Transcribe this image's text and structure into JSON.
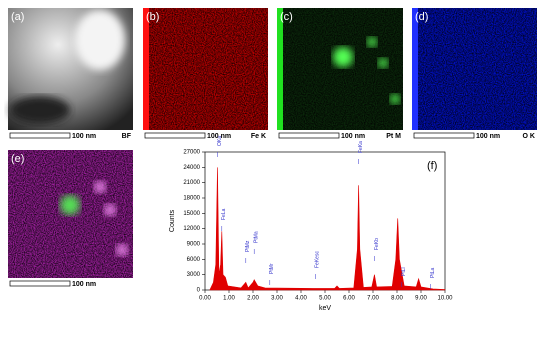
{
  "panels": [
    {
      "label": "(a)",
      "scale": "100 nm",
      "signal": "BF"
    },
    {
      "label": "(b)",
      "scale": "100 nm",
      "signal": "Fe K"
    },
    {
      "label": "(c)",
      "scale": "100 nm",
      "signal": "Pt M"
    },
    {
      "label": "(d)",
      "scale": "100 nm",
      "signal": "O K"
    },
    {
      "label": "(e)",
      "scale": "100 nm"
    }
  ],
  "chart_data": {
    "type": "area",
    "label": "(f)",
    "x_label": "keV",
    "y_label": "Counts",
    "color": "#e00000",
    "x": [
      0.2,
      0.35,
      0.45,
      0.52,
      0.58,
      0.65,
      0.7,
      0.75,
      0.85,
      0.95,
      1.5,
      1.7,
      1.8,
      2.0,
      2.05,
      2.2,
      2.5,
      4.5,
      5.4,
      5.5,
      5.6,
      6.2,
      6.35,
      6.4,
      6.45,
      6.6,
      6.95,
      7.06,
      7.15,
      7.8,
      7.95,
      8.03,
      8.1,
      8.3,
      8.8,
      8.9,
      9.0,
      9.5,
      10
    ],
    "values": [
      0,
      1500,
      5000,
      24000,
      3000,
      5000,
      11500,
      3000,
      2500,
      800,
      400,
      1500,
      400,
      1500,
      2000,
      800,
      400,
      300,
      300,
      800,
      300,
      400,
      8000,
      20500,
      8000,
      500,
      600,
      3000,
      600,
      700,
      6000,
      14000,
      6000,
      800,
      600,
      2200,
      600,
      200,
      100
    ],
    "xlim": [
      0,
      10
    ],
    "ylim": [
      0,
      27000
    ],
    "xticks": [
      {
        "value": 0,
        "label": "0.00"
      },
      {
        "value": 1,
        "label": "1.00"
      },
      {
        "value": 2,
        "label": "2.00"
      },
      {
        "value": 3,
        "label": "3.00"
      },
      {
        "value": 4,
        "label": "4.00"
      },
      {
        "value": 5,
        "label": "5.00"
      },
      {
        "value": 6,
        "label": "6.00"
      },
      {
        "value": 7,
        "label": "7.00"
      },
      {
        "value": 8,
        "label": "8.00"
      },
      {
        "value": 9,
        "label": "9.00"
      },
      {
        "value": 10,
        "label": "10.00"
      }
    ],
    "yticks": [
      0,
      3000,
      6000,
      9000,
      12000,
      15000,
      18000,
      21000,
      24000,
      27000
    ],
    "annotations": [
      {
        "label": "OKa",
        "x": 0.52
      },
      {
        "label": "FeLa",
        "x": 0.7
      },
      {
        "label": "PtMz",
        "x": 1.7
      },
      {
        "label": "PtMa",
        "x": 2.05
      },
      {
        "label": "PtMr",
        "x": 2.7
      },
      {
        "label": "FeKesc",
        "x": 4.6
      },
      {
        "label": "FeKa",
        "x": 6.4
      },
      {
        "label": "FeKb",
        "x": 7.06
      },
      {
        "label": "PtLl",
        "x": 8.2
      },
      {
        "label": "PtLa",
        "x": 9.4
      }
    ]
  }
}
